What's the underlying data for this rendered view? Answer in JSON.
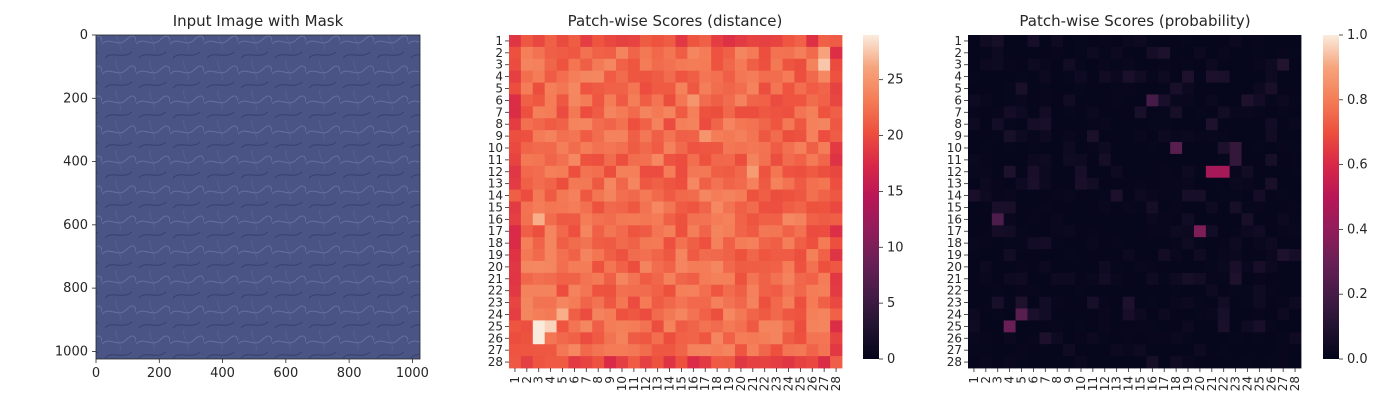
{
  "figure": {
    "background": "#ffffff",
    "text_color": "#262626"
  },
  "chart_data": [
    {
      "type": "image",
      "title": "Input Image with Mask",
      "xlim": [
        0,
        1024
      ],
      "ylim": [
        1024,
        0
      ],
      "xticks": [
        0,
        200,
        400,
        600,
        800,
        1000
      ],
      "yticks": [
        0,
        200,
        400,
        600,
        800,
        1000
      ],
      "image_description": "blue leather texture",
      "base_color": "#4a5586"
    },
    {
      "type": "heatmap",
      "title": "Patch-wise Scores (distance)",
      "rows": 28,
      "cols": 28,
      "row_labels": [
        "1",
        "2",
        "3",
        "4",
        "5",
        "6",
        "7",
        "8",
        "9",
        "10",
        "11",
        "12",
        "13",
        "14",
        "15",
        "16",
        "17",
        "18",
        "19",
        "20",
        "21",
        "22",
        "23",
        "24",
        "25",
        "26",
        "27",
        "28"
      ],
      "col_labels": [
        "1",
        "2",
        "3",
        "4",
        "5",
        "6",
        "7",
        "8",
        "9",
        "10",
        "11",
        "12",
        "13",
        "14",
        "15",
        "16",
        "17",
        "18",
        "19",
        "20",
        "21",
        "22",
        "23",
        "24",
        "25",
        "26",
        "27",
        "28"
      ],
      "colormap": "rocket",
      "vmin": 0,
      "vmax": 29,
      "colorbar_ticks": [
        0,
        5,
        10,
        15,
        20,
        25
      ],
      "background_value": 22,
      "border_value": 19.5,
      "hotspots": [
        {
          "row": 25,
          "col": 3,
          "value": 29
        },
        {
          "row": 26,
          "col": 3,
          "value": 29
        },
        {
          "row": 25,
          "col": 4,
          "value": 28
        },
        {
          "row": 24,
          "col": 5,
          "value": 26.5
        },
        {
          "row": 16,
          "col": 3,
          "value": 26.5
        },
        {
          "row": 3,
          "col": 27,
          "value": 27.5
        },
        {
          "row": 2,
          "col": 27,
          "value": 26
        },
        {
          "row": 12,
          "col": 21,
          "value": 25.5
        },
        {
          "row": 6,
          "col": 16,
          "value": 25
        },
        {
          "row": 9,
          "col": 17,
          "value": 25
        }
      ]
    },
    {
      "type": "heatmap",
      "title": "Patch-wise Scores (probability)",
      "rows": 28,
      "cols": 28,
      "row_labels": [
        "1",
        "2",
        "3",
        "4",
        "5",
        "6",
        "7",
        "8",
        "9",
        "10",
        "11",
        "12",
        "13",
        "14",
        "15",
        "16",
        "17",
        "18",
        "19",
        "20",
        "21",
        "22",
        "23",
        "24",
        "25",
        "26",
        "27",
        "28"
      ],
      "col_labels": [
        "1",
        "2",
        "3",
        "4",
        "5",
        "6",
        "7",
        "8",
        "9",
        "10",
        "11",
        "12",
        "13",
        "14",
        "15",
        "16",
        "17",
        "18",
        "19",
        "20",
        "21",
        "22",
        "23",
        "24",
        "25",
        "26",
        "27",
        "28"
      ],
      "colormap": "rocket",
      "vmin": 0,
      "vmax": 1,
      "colorbar_ticks": [
        0.0,
        0.2,
        0.4,
        0.6,
        0.8,
        1.0
      ],
      "colorbar_tick_labels": [
        "0.0",
        "0.2",
        "0.4",
        "0.6",
        "0.8",
        "1.0"
      ],
      "background_value": 0.01,
      "hotspots": [
        {
          "row": 12,
          "col": 21,
          "value": 0.45
        },
        {
          "row": 12,
          "col": 22,
          "value": 0.45
        },
        {
          "row": 17,
          "col": 20,
          "value": 0.35
        },
        {
          "row": 25,
          "col": 4,
          "value": 0.3
        },
        {
          "row": 24,
          "col": 5,
          "value": 0.25
        },
        {
          "row": 10,
          "col": 18,
          "value": 0.25
        },
        {
          "row": 16,
          "col": 3,
          "value": 0.22
        },
        {
          "row": 6,
          "col": 16,
          "value": 0.2
        },
        {
          "row": 11,
          "col": 23,
          "value": 0.15
        },
        {
          "row": 10,
          "col": 23,
          "value": 0.15
        },
        {
          "row": 3,
          "col": 27,
          "value": 0.1
        }
      ]
    }
  ]
}
